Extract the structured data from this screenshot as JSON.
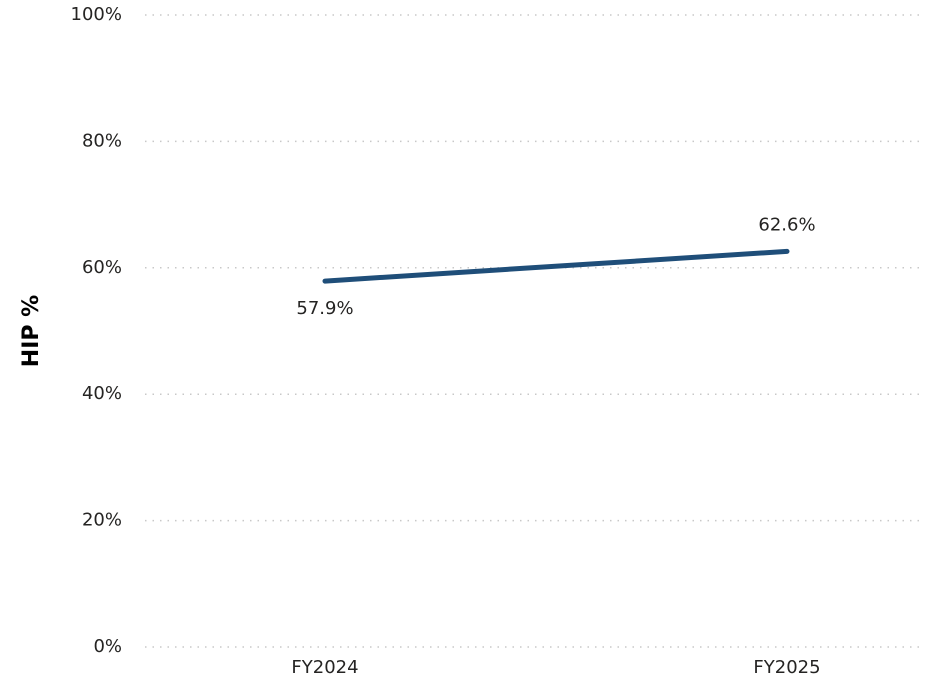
{
  "chart_data": {
    "type": "line",
    "ylabel": "HIP %",
    "categories": [
      "FY2024",
      "FY2025"
    ],
    "series": [
      {
        "name": "HIP %",
        "color": "#1f4e79",
        "values": [
          57.9,
          62.6
        ],
        "value_labels": [
          "57.9%",
          "62.6%"
        ]
      }
    ],
    "ylim": [
      0,
      100
    ],
    "yticks": [
      {
        "value": 0,
        "label": "0%"
      },
      {
        "value": 20,
        "label": "20%"
      },
      {
        "value": 40,
        "label": "40%"
      },
      {
        "value": 60,
        "label": "60%"
      },
      {
        "value": 80,
        "label": "80%"
      },
      {
        "value": 100,
        "label": "100%"
      }
    ],
    "grid": true
  }
}
